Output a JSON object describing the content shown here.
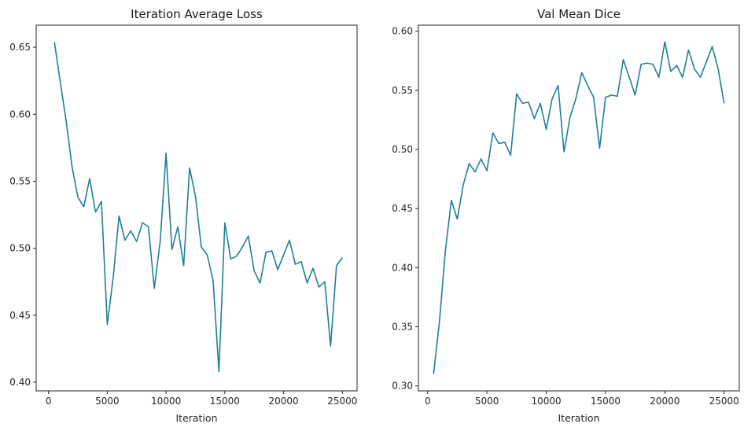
{
  "chart_data": [
    {
      "type": "line",
      "title": "Iteration Average Loss",
      "xlabel": "Iteration",
      "ylabel": "",
      "xlim": [
        -1050,
        26250
      ],
      "ylim": [
        0.3935,
        0.6665
      ],
      "xticks": [
        0,
        5000,
        10000,
        15000,
        20000,
        25000
      ],
      "xtick_labels": [
        "0",
        "5000",
        "10000",
        "15000",
        "20000",
        "25000"
      ],
      "yticks": [
        0.4,
        0.45,
        0.5,
        0.55,
        0.6,
        0.65
      ],
      "ytick_labels": [
        "0.40",
        "0.45",
        "0.50",
        "0.55",
        "0.60",
        "0.65"
      ],
      "grid": false,
      "color": "#1f7f99",
      "series": [
        {
          "x": [
            500,
            1000,
            1500,
            2000,
            2500,
            3000,
            3500,
            4000,
            4500,
            5000,
            5500,
            6000,
            6500,
            7000,
            7500,
            8000,
            8500,
            9000,
            9500,
            10000,
            10500,
            11000,
            11500,
            12000,
            12500,
            13000,
            13500,
            14000,
            14500,
            15000,
            15500,
            16000,
            16500,
            17000,
            17500,
            18000,
            18500,
            19000,
            19500,
            20000,
            20500,
            21000,
            21500,
            22000,
            22500,
            23000,
            23500,
            24000,
            24500,
            25000
          ],
          "y": [
            0.654,
            0.624,
            0.595,
            0.561,
            0.538,
            0.531,
            0.552,
            0.527,
            0.535,
            0.443,
            0.478,
            0.524,
            0.506,
            0.513,
            0.505,
            0.519,
            0.516,
            0.47,
            0.505,
            0.571,
            0.499,
            0.516,
            0.487,
            0.56,
            0.539,
            0.501,
            0.495,
            0.476,
            0.408,
            0.519,
            0.492,
            0.494,
            0.501,
            0.509,
            0.483,
            0.474,
            0.497,
            0.498,
            0.484,
            0.495,
            0.506,
            0.488,
            0.49,
            0.474,
            0.485,
            0.471,
            0.475,
            0.427,
            0.487,
            0.493
          ]
        }
      ]
    },
    {
      "type": "line",
      "title": "Val Mean Dice",
      "xlabel": "Iteration",
      "ylabel": "",
      "xlim": [
        -780,
        26280
      ],
      "ylim": [
        0.2958,
        0.6051
      ],
      "xticks": [
        0,
        5000,
        10000,
        15000,
        20000,
        25000
      ],
      "xtick_labels": [
        "0",
        "5000",
        "10000",
        "15000",
        "20000",
        "25000"
      ],
      "yticks": [
        0.3,
        0.35,
        0.4,
        0.45,
        0.5,
        0.55,
        0.6
      ],
      "ytick_labels": [
        "0.30",
        "0.35",
        "0.40",
        "0.45",
        "0.50",
        "0.55",
        "0.60"
      ],
      "grid": false,
      "color": "#1f7f99",
      "series": [
        {
          "x": [
            500,
            1000,
            1500,
            2000,
            2500,
            3000,
            3500,
            4000,
            4500,
            5000,
            5500,
            6000,
            6500,
            7000,
            7500,
            8000,
            8500,
            9000,
            9500,
            10000,
            10500,
            11000,
            11500,
            12000,
            12500,
            13000,
            13500,
            14000,
            14500,
            15000,
            15500,
            16000,
            16500,
            17000,
            17500,
            18000,
            18500,
            19000,
            19500,
            20000,
            20500,
            21000,
            21500,
            22000,
            22500,
            23000,
            23500,
            24000,
            24500,
            25000
          ],
          "y": [
            0.31,
            0.355,
            0.415,
            0.457,
            0.441,
            0.47,
            0.488,
            0.481,
            0.492,
            0.482,
            0.514,
            0.505,
            0.506,
            0.495,
            0.547,
            0.539,
            0.54,
            0.526,
            0.539,
            0.517,
            0.543,
            0.554,
            0.498,
            0.527,
            0.543,
            0.565,
            0.554,
            0.544,
            0.501,
            0.544,
            0.546,
            0.545,
            0.576,
            0.561,
            0.546,
            0.572,
            0.573,
            0.572,
            0.561,
            0.591,
            0.566,
            0.571,
            0.561,
            0.584,
            0.568,
            0.561,
            0.574,
            0.587,
            0.568,
            0.539
          ]
        }
      ]
    }
  ]
}
